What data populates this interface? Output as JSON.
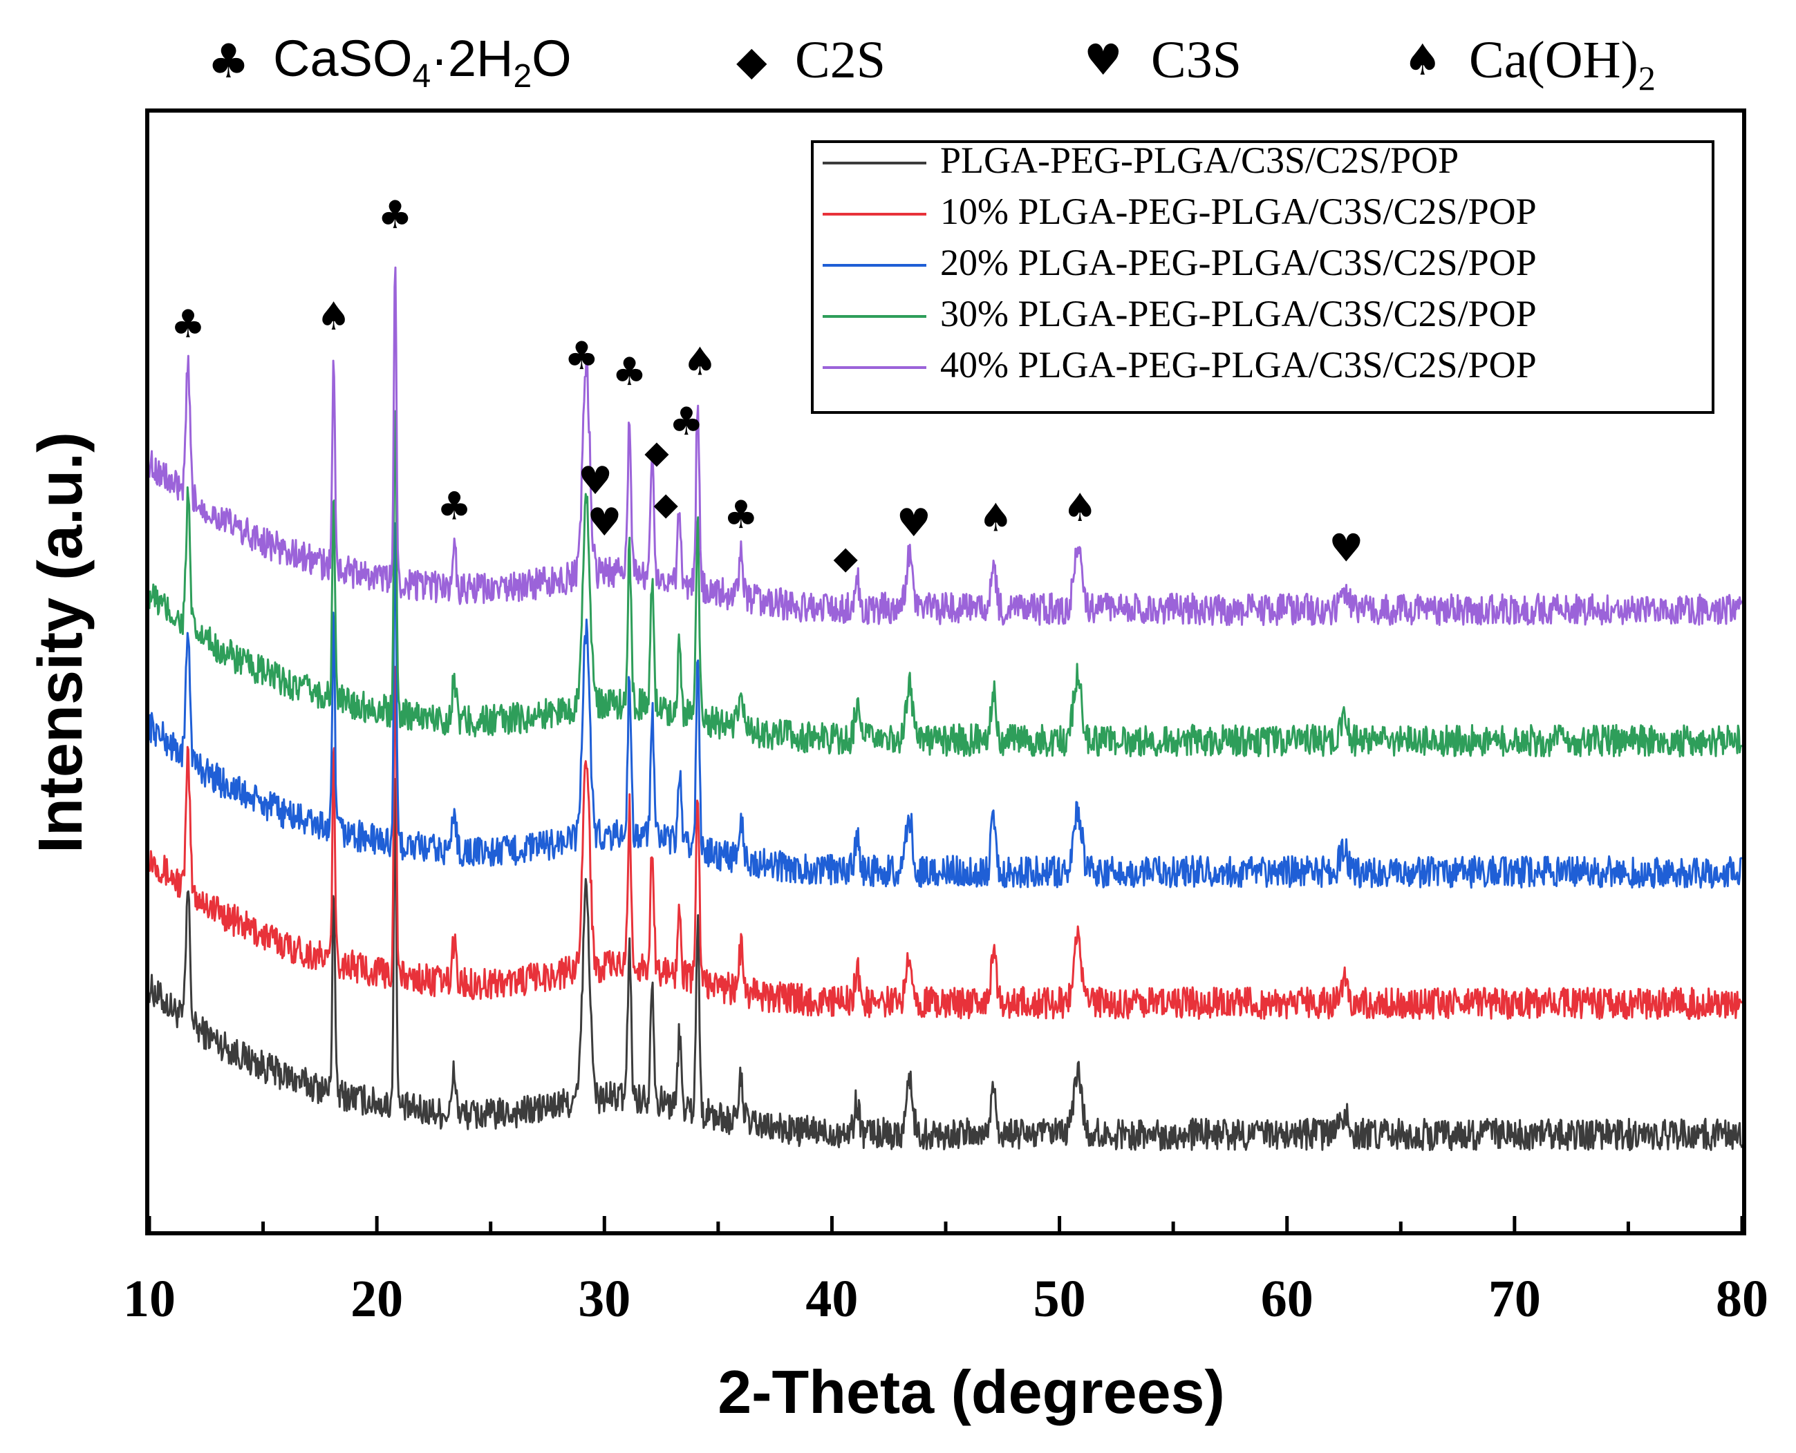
{
  "colors": {
    "series": [
      "#3c3c3c",
      "#e8323a",
      "#1f5fd6",
      "#2e9e5a",
      "#9b63d9"
    ]
  },
  "top_legend": [
    {
      "symbol": "club-icon",
      "glyph": "♣",
      "text_main": "CaSO",
      "sub1": "4",
      "text_mid": "·2H",
      "sub2": "2",
      "text_end": "O"
    },
    {
      "symbol": "diamond-icon",
      "glyph": "◆",
      "text_main": "C2S"
    },
    {
      "symbol": "heart-icon",
      "glyph": "♥",
      "text_main": "C3S"
    },
    {
      "symbol": "spade-icon",
      "glyph": "♠",
      "text_main": "Ca(OH)",
      "sub1": "2"
    }
  ],
  "chart_data": {
    "type": "line",
    "xlabel": "2-Theta (degrees)",
    "ylabel": "Intensity (a.u.)",
    "xlim": [
      10,
      80
    ],
    "xticks": [
      "10",
      "20",
      "30",
      "40",
      "50",
      "60",
      "70",
      "80"
    ],
    "ylabel_has_ticks": false,
    "legend_position": "top-right",
    "series": [
      {
        "name": "PLGA-PEG-PLGA/C3S/C2S/POP",
        "offset": 0,
        "baseline_start": 33,
        "baseline_end": 5
      },
      {
        "name": "10% PLGA-PEG-PLGA/C3S/C2S/POP",
        "offset": 1,
        "baseline_start": 33,
        "baseline_end": 5
      },
      {
        "name": "20% PLGA-PEG-PLGA/C3S/C2S/POP",
        "offset": 2,
        "baseline_start": 33,
        "baseline_end": 5
      },
      {
        "name": "30% PLGA-PEG-PLGA/C3S/C2S/POP",
        "offset": 3,
        "baseline_start": 33,
        "baseline_end": 5
      },
      {
        "name": "40% PLGA-PEG-PLGA/C3S/C2S/POP",
        "offset": 4,
        "baseline_start": 33,
        "baseline_end": 5
      }
    ],
    "peaks": [
      {
        "x": 11.7,
        "h": 25,
        "w": 0.12
      },
      {
        "x": 18.1,
        "h": 40,
        "w": 0.08
      },
      {
        "x": 20.8,
        "h": 62,
        "w": 0.08
      },
      {
        "x": 23.4,
        "h": 8,
        "w": 0.12
      },
      {
        "x": 29.2,
        "h": 40,
        "w": 0.22
      },
      {
        "x": 31.1,
        "h": 30,
        "w": 0.1
      },
      {
        "x": 32.1,
        "h": 24,
        "w": 0.1
      },
      {
        "x": 33.3,
        "h": 14,
        "w": 0.1
      },
      {
        "x": 34.1,
        "h": 36,
        "w": 0.1
      },
      {
        "x": 36.0,
        "h": 8,
        "w": 0.15
      },
      {
        "x": 41.1,
        "h": 6,
        "w": 0.15
      },
      {
        "x": 43.4,
        "h": 10,
        "w": 0.2
      },
      {
        "x": 47.1,
        "h": 10,
        "w": 0.15
      },
      {
        "x": 50.8,
        "h": 12,
        "w": 0.25
      },
      {
        "x": 62.5,
        "h": 4,
        "w": 0.25
      }
    ],
    "annotations": [
      {
        "x": 11.7,
        "symbol": "club-icon"
      },
      {
        "x": 18.1,
        "symbol": "spade-icon"
      },
      {
        "x": 20.8,
        "symbol": "club-icon"
      },
      {
        "x": 23.4,
        "symbol": "club-icon"
      },
      {
        "x": 29.0,
        "symbol": "club-icon"
      },
      {
        "x": 29.6,
        "symbol": "heart-icon"
      },
      {
        "x": 30.0,
        "symbol": "heart-icon"
      },
      {
        "x": 31.1,
        "symbol": "club-icon"
      },
      {
        "x": 32.3,
        "symbol": "diamond-icon"
      },
      {
        "x": 32.7,
        "symbol": "diamond-icon"
      },
      {
        "x": 33.6,
        "symbol": "club-icon"
      },
      {
        "x": 34.2,
        "symbol": "spade-icon"
      },
      {
        "x": 36.0,
        "symbol": "club-icon"
      },
      {
        "x": 40.6,
        "symbol": "diamond-icon"
      },
      {
        "x": 43.6,
        "symbol": "heart-icon"
      },
      {
        "x": 47.2,
        "symbol": "spade-icon"
      },
      {
        "x": 50.9,
        "symbol": "spade-icon"
      },
      {
        "x": 62.6,
        "symbol": "heart-icon"
      }
    ]
  }
}
